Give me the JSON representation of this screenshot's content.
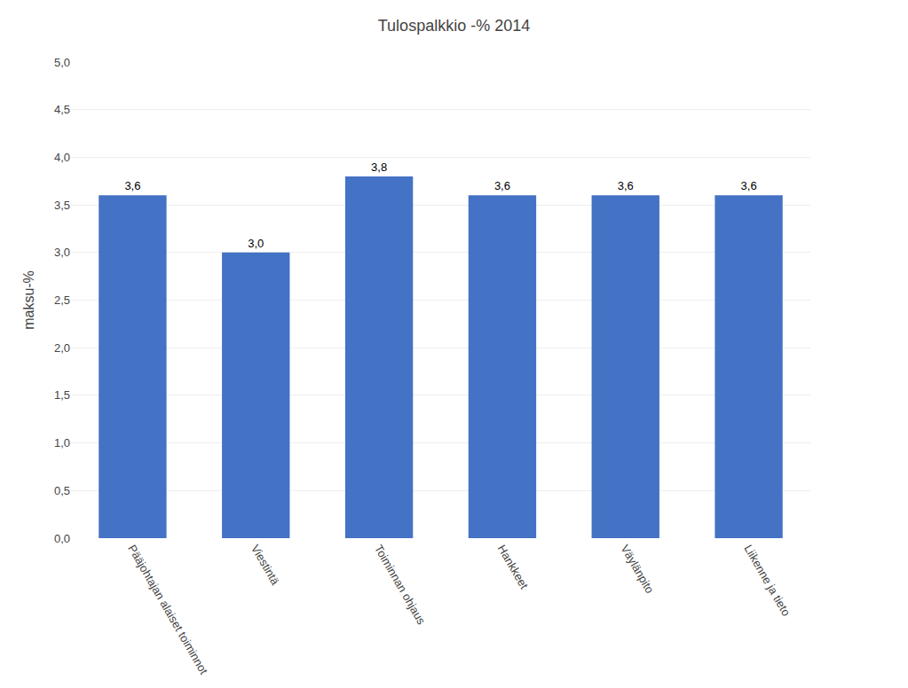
{
  "chart_data": {
    "type": "bar",
    "title": "Tulospalkkio -% 2014",
    "ylabel": "maksu-%",
    "categories": [
      "Pääjohtajan alaiset toiminnot",
      "Viestintä",
      "Toiminnan ohjaus",
      "Hankkeet",
      "Väylänpito",
      "Liikenne ja tieto"
    ],
    "values": [
      3.6,
      3.0,
      3.8,
      3.6,
      3.6,
      3.6
    ],
    "value_labels": [
      "3,6",
      "3,0",
      "3,8",
      "3,6",
      "3,6",
      "3,6"
    ],
    "data_labels": true,
    "color": "#4472C4",
    "ylim": [
      0.0,
      5.0
    ],
    "yticks": [
      {
        "value": 0.0,
        "label": "0,0"
      },
      {
        "value": 0.5,
        "label": "0,5"
      },
      {
        "value": 1.0,
        "label": "1,0"
      },
      {
        "value": 1.5,
        "label": "1,5"
      },
      {
        "value": 2.0,
        "label": "2,0"
      },
      {
        "value": 2.5,
        "label": "2,5"
      },
      {
        "value": 3.0,
        "label": "3,0"
      },
      {
        "value": 3.5,
        "label": "3,5"
      },
      {
        "value": 4.0,
        "label": "4,0"
      },
      {
        "value": 4.5,
        "label": "4,5"
      },
      {
        "value": 5.0,
        "label": "5,0"
      }
    ],
    "grid": true
  }
}
